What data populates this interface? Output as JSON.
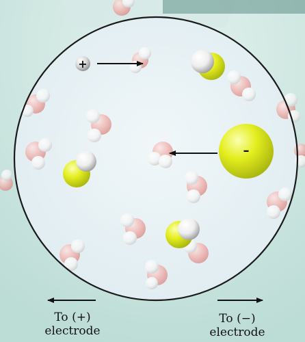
{
  "labels": {
    "cation_charge": "+",
    "anion_charge": "–",
    "left_caption_line1": "To (+)",
    "left_caption_line2": "electrode",
    "right_caption_line1": "To (−)",
    "right_caption_line2": "electrode"
  },
  "colors": {
    "background": "#cfe6e1",
    "magnified_circle": "#e9f3f6",
    "circle_border": "#1a1a1a",
    "anion": "#e2ec1e",
    "water_oxygen": "#f0b0ae",
    "water_hydrogen": "#ffffff",
    "cation": "#d8d8d8",
    "arrow": "#111111"
  }
}
